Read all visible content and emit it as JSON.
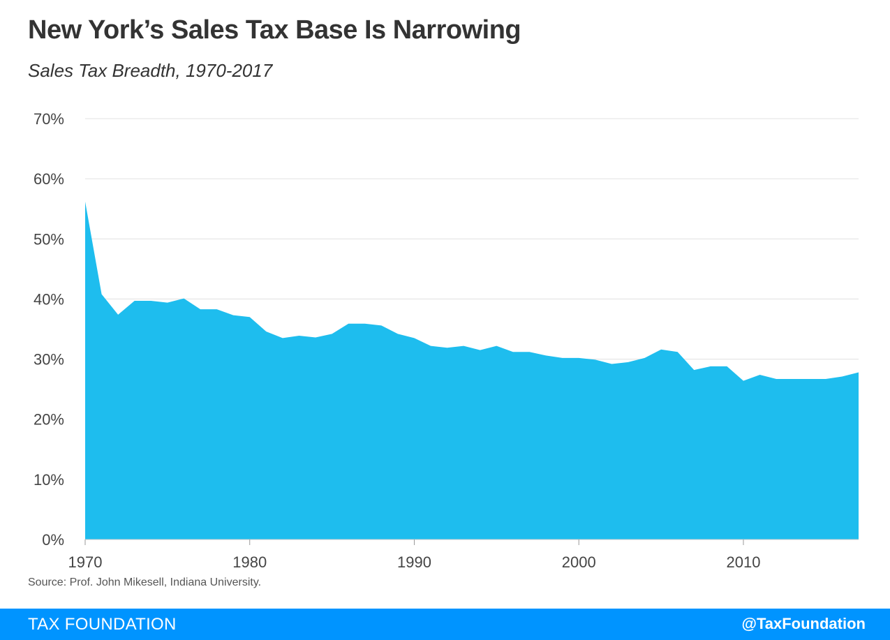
{
  "title": "New York’s Sales Tax Base Is Narrowing",
  "subtitle": "Sales Tax Breadth, 1970-2017",
  "source": "Source: Prof. John Mikesell, Indiana University.",
  "footer": {
    "brand": "TAX FOUNDATION",
    "handle": "@TaxFoundation"
  },
  "colors": {
    "area_fill": "#1ebdee",
    "footer_bg": "#0094ff",
    "gridline": "#e0e0e0"
  },
  "chart_data": {
    "type": "area",
    "title": "New York’s Sales Tax Base Is Narrowing",
    "subtitle": "Sales Tax Breadth, 1970-2017",
    "xlabel": "",
    "ylabel": "",
    "xlim": [
      1970,
      2017
    ],
    "ylim": [
      0,
      70
    ],
    "grid": true,
    "x_ticks": [
      1970,
      1980,
      1990,
      2000,
      2010
    ],
    "x_tick_labels": [
      "1970",
      "1980",
      "1990",
      "2000",
      "2010"
    ],
    "y_ticks": [
      0,
      10,
      20,
      30,
      40,
      50,
      60,
      70
    ],
    "y_tick_labels": [
      "0%",
      "10%",
      "20%",
      "30%",
      "40%",
      "50%",
      "60%",
      "70%"
    ],
    "series": [
      {
        "x": [
          1970,
          1971,
          1972,
          1973,
          1974,
          1975,
          1976,
          1977,
          1978,
          1979,
          1980,
          1981,
          1982,
          1983,
          1984,
          1985,
          1986,
          1987,
          1988,
          1989,
          1990,
          1991,
          1992,
          1993,
          1994,
          1995,
          1996,
          1997,
          1998,
          1999,
          2000,
          2001,
          2002,
          2003,
          2004,
          2005,
          2006,
          2007,
          2008,
          2009,
          2010,
          2011,
          2012,
          2013,
          2014,
          2015,
          2016,
          2017
        ],
        "values": [
          56.2,
          40.8,
          37.4,
          39.7,
          39.7,
          39.4,
          40.1,
          38.3,
          38.3,
          37.3,
          37.0,
          34.6,
          33.5,
          33.9,
          33.6,
          34.2,
          35.9,
          35.9,
          35.6,
          34.2,
          33.5,
          32.2,
          31.9,
          32.2,
          31.5,
          32.2,
          31.2,
          31.2,
          30.6,
          30.2,
          30.2,
          29.9,
          29.2,
          29.5,
          30.2,
          31.6,
          31.2,
          28.2,
          28.8,
          28.8,
          26.4,
          27.4,
          26.7,
          26.7,
          26.7,
          26.7,
          27.1,
          27.8
        ]
      }
    ]
  }
}
